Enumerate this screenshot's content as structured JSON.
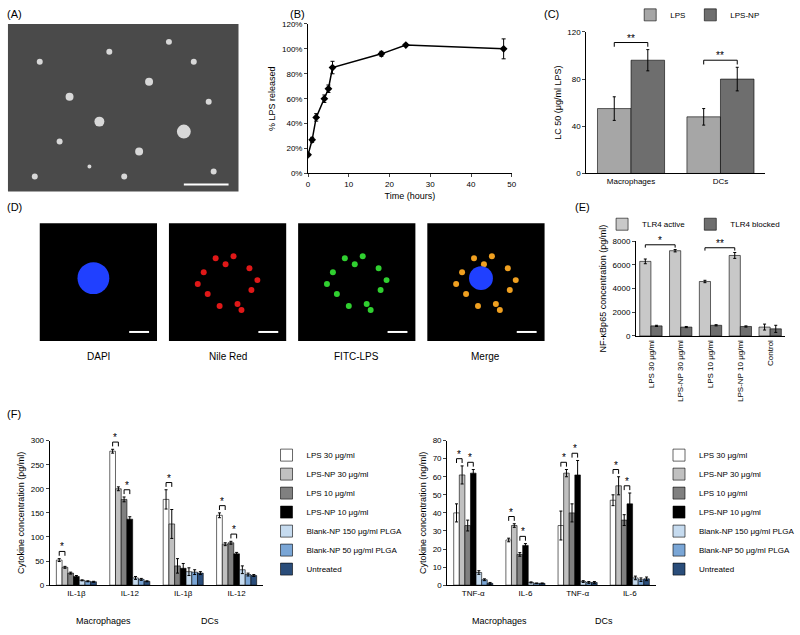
{
  "chart_data": [
    {
      "type": "line",
      "panel_label": "(B)",
      "x": [
        0,
        1,
        2,
        4,
        5,
        6,
        18,
        24,
        48
      ],
      "values": [
        15,
        27,
        45,
        60,
        68,
        85,
        96,
        103,
        100
      ],
      "errors": [
        1,
        2,
        3,
        3,
        3,
        5,
        2,
        1,
        8
      ],
      "color": "#000000",
      "marker": "diamond",
      "xlabel": "Time (hours)",
      "ylabel": "% LPS released",
      "xlim": [
        0,
        50
      ],
      "xticks": [
        0,
        10,
        20,
        30,
        40,
        50
      ],
      "ylim": [
        0,
        120
      ],
      "yticks": [
        {
          "value": 0,
          "label": "0%"
        },
        {
          "value": 20,
          "label": "20%"
        },
        {
          "value": 40,
          "label": "40%"
        },
        {
          "value": 60,
          "label": "60%"
        },
        {
          "value": 80,
          "label": "80%"
        },
        {
          "value": 100,
          "label": "100%"
        },
        {
          "value": 120,
          "label": "120%"
        }
      ],
      "grid": false
    },
    {
      "type": "bar",
      "panel_label": "(C)",
      "categories": [
        "Macrophages",
        "DCs"
      ],
      "ylabel": "LC 50 (μg/ml LPS)",
      "ylim": [
        0,
        120
      ],
      "yticks": [
        0,
        40,
        80,
        120
      ],
      "grid": false,
      "legend": "top right",
      "series": [
        {
          "name": "LPS",
          "color": "#a6a6a6",
          "values": [
            55,
            48
          ],
          "errors": [
            10,
            7
          ]
        },
        {
          "name": "LPS-NP",
          "color": "#6e6e6e",
          "values": [
            96,
            80
          ],
          "errors": [
            9,
            10
          ]
        }
      ],
      "significance": [
        {
          "text": "**",
          "from": [
            0,
            0
          ],
          "to": [
            0,
            1
          ]
        },
        {
          "text": "**",
          "from": [
            1,
            0
          ],
          "to": [
            1,
            1
          ]
        }
      ]
    },
    {
      "type": "bar",
      "panel_label": "(E)",
      "categories": [
        "LPS 30 μg/ml",
        "LPS-NP 30 μg/ml",
        "LPS 10 μg/ml",
        "LPS-NP 10 μg/ml",
        "Control"
      ],
      "ylabel": "NF-κBp65 concentration (pg/ml)",
      "ylim": [
        0,
        8000
      ],
      "yticks": [
        0,
        2000,
        4000,
        6000,
        8000
      ],
      "grid": false,
      "legend": "top right",
      "series": [
        {
          "name": "TLR4 active",
          "color": "#c8c8c8",
          "values": [
            6300,
            7200,
            4600,
            6800,
            750
          ],
          "errors": [
            200,
            100,
            100,
            250,
            250
          ]
        },
        {
          "name": "TLR4 blocked",
          "color": "#6e6e6e",
          "values": [
            850,
            750,
            900,
            800,
            600
          ],
          "errors": [
            50,
            50,
            50,
            50,
            300
          ]
        }
      ],
      "significance": [
        {
          "text": "*",
          "from": [
            0,
            0
          ],
          "to": [
            1,
            0
          ]
        },
        {
          "text": "**",
          "from": [
            2,
            0
          ],
          "to": [
            3,
            0
          ]
        }
      ]
    },
    {
      "type": "bar",
      "panel_label": "(F)",
      "categories": [
        "IL-1β",
        "IL-12",
        "IL-1β",
        "IL-12"
      ],
      "groups": [
        "Macrophages",
        "Macrophages",
        "DCs",
        "DCs"
      ],
      "ylabel": "Cytokine concentration (pg/ml)",
      "ylim": [
        0,
        300
      ],
      "yticks": [
        0,
        50,
        100,
        150,
        200,
        250,
        300
      ],
      "grid": false,
      "legend": "right",
      "series": [
        {
          "name": "LPS 30 μg/ml",
          "color": "#ffffff",
          "values": [
            52,
            278,
            178,
            145
          ],
          "errors": [
            3,
            4,
            20,
            5
          ]
        },
        {
          "name": "LPS-NP 30 μg/ml",
          "color": "#c0c0c0",
          "values": [
            37,
            200,
            127,
            85
          ],
          "errors": [
            2,
            4,
            30,
            3
          ]
        },
        {
          "name": "LPS 10 μg/ml",
          "color": "#808080",
          "values": [
            25,
            178,
            40,
            88
          ],
          "errors": [
            2,
            5,
            15,
            3
          ]
        },
        {
          "name": "LPS-NP 10 μg/ml",
          "color": "#000000",
          "values": [
            18,
            137,
            35,
            65
          ],
          "errors": [
            2,
            5,
            10,
            3
          ]
        },
        {
          "name": "Blank-NP 150 μg/ml PLGA",
          "color": "#c6dbef",
          "values": [
            10,
            15,
            28,
            32
          ],
          "errors": [
            1,
            3,
            8,
            8
          ]
        },
        {
          "name": "Blank-NP 50 μg/ml PLGA",
          "color": "#7aa6d6",
          "values": [
            8,
            12,
            27,
            22
          ],
          "errors": [
            1,
            2,
            5,
            3
          ]
        },
        {
          "name": "Untreated",
          "color": "#2a4d7a",
          "values": [
            7,
            8,
            25,
            20
          ],
          "errors": [
            1,
            1,
            3,
            2
          ]
        }
      ],
      "significance": [
        {
          "text": "*",
          "from": [
            0,
            0
          ],
          "to": [
            0,
            1
          ]
        },
        {
          "text": "*",
          "from": [
            1,
            0
          ],
          "to": [
            1,
            1
          ]
        },
        {
          "text": "*",
          "from": [
            1,
            2
          ],
          "to": [
            1,
            3
          ]
        },
        {
          "text": "*",
          "from": [
            2,
            0
          ],
          "to": [
            2,
            1
          ]
        },
        {
          "text": "*",
          "from": [
            3,
            0
          ],
          "to": [
            3,
            1
          ]
        },
        {
          "text": "*",
          "from": [
            3,
            2
          ],
          "to": [
            3,
            3
          ]
        }
      ]
    },
    {
      "type": "bar",
      "categories": [
        "TNF-α",
        "IL-6",
        "TNF-α",
        "IL-6"
      ],
      "groups": [
        "Macrophages",
        "Macrophages",
        "DCs",
        "DCs"
      ],
      "ylabel": "Cytokine concentration (ng/ml)",
      "ylim": [
        0,
        80
      ],
      "yticks": [
        0,
        10,
        20,
        30,
        40,
        50,
        60,
        70,
        80
      ],
      "grid": false,
      "legend": "right",
      "series": [
        {
          "name": "LPS 30 μg/ml",
          "color": "#ffffff",
          "values": [
            40,
            25,
            33,
            47
          ],
          "errors": [
            5,
            1,
            8,
            3
          ]
        },
        {
          "name": "LPS-NP 30 μg/ml",
          "color": "#c0c0c0",
          "values": [
            61,
            33,
            62,
            55
          ],
          "errors": [
            5,
            1,
            2,
            5
          ]
        },
        {
          "name": "LPS 10 μg/ml",
          "color": "#808080",
          "values": [
            33,
            17,
            40,
            36
          ],
          "errors": [
            3,
            1,
            5,
            3
          ]
        },
        {
          "name": "LPS-NP 10 μg/ml",
          "color": "#000000",
          "values": [
            62,
            22,
            61,
            45
          ],
          "errors": [
            2,
            1,
            8,
            6
          ]
        },
        {
          "name": "Blank-NP 150 μg/ml PLGA",
          "color": "#c6dbef",
          "values": [
            7,
            1.5,
            2,
            4
          ],
          "errors": [
            1,
            0.3,
            0.5,
            1
          ]
        },
        {
          "name": "Blank-NP 50 μg/ml PLGA",
          "color": "#7aa6d6",
          "values": [
            3,
            1,
            1.5,
            3
          ],
          "errors": [
            0.5,
            0.2,
            0.5,
            1
          ]
        },
        {
          "name": "Untreated",
          "color": "#2a4d7a",
          "values": [
            1,
            1,
            1.5,
            3.5
          ],
          "errors": [
            0.5,
            0.2,
            0.5,
            1
          ]
        }
      ],
      "significance": [
        {
          "text": "*",
          "from": [
            0,
            0
          ],
          "to": [
            0,
            1
          ]
        },
        {
          "text": "*",
          "from": [
            0,
            2
          ],
          "to": [
            0,
            3
          ]
        },
        {
          "text": "*",
          "from": [
            1,
            0
          ],
          "to": [
            1,
            1
          ]
        },
        {
          "text": "*",
          "from": [
            1,
            2
          ],
          "to": [
            1,
            3
          ]
        },
        {
          "text": "*",
          "from": [
            2,
            0
          ],
          "to": [
            2,
            1
          ]
        },
        {
          "text": "*",
          "from": [
            2,
            2
          ],
          "to": [
            2,
            3
          ]
        },
        {
          "text": "*",
          "from": [
            3,
            0
          ],
          "to": [
            3,
            1
          ]
        },
        {
          "text": "*",
          "from": [
            3,
            2
          ],
          "to": [
            3,
            3
          ]
        }
      ]
    }
  ],
  "images": [
    {
      "panel_label": "(A)"
    },
    {
      "panel_label": "(D)",
      "captions": [
        "DAPI",
        "Nile Red",
        "FITC-LPS",
        "Merge"
      ]
    }
  ]
}
